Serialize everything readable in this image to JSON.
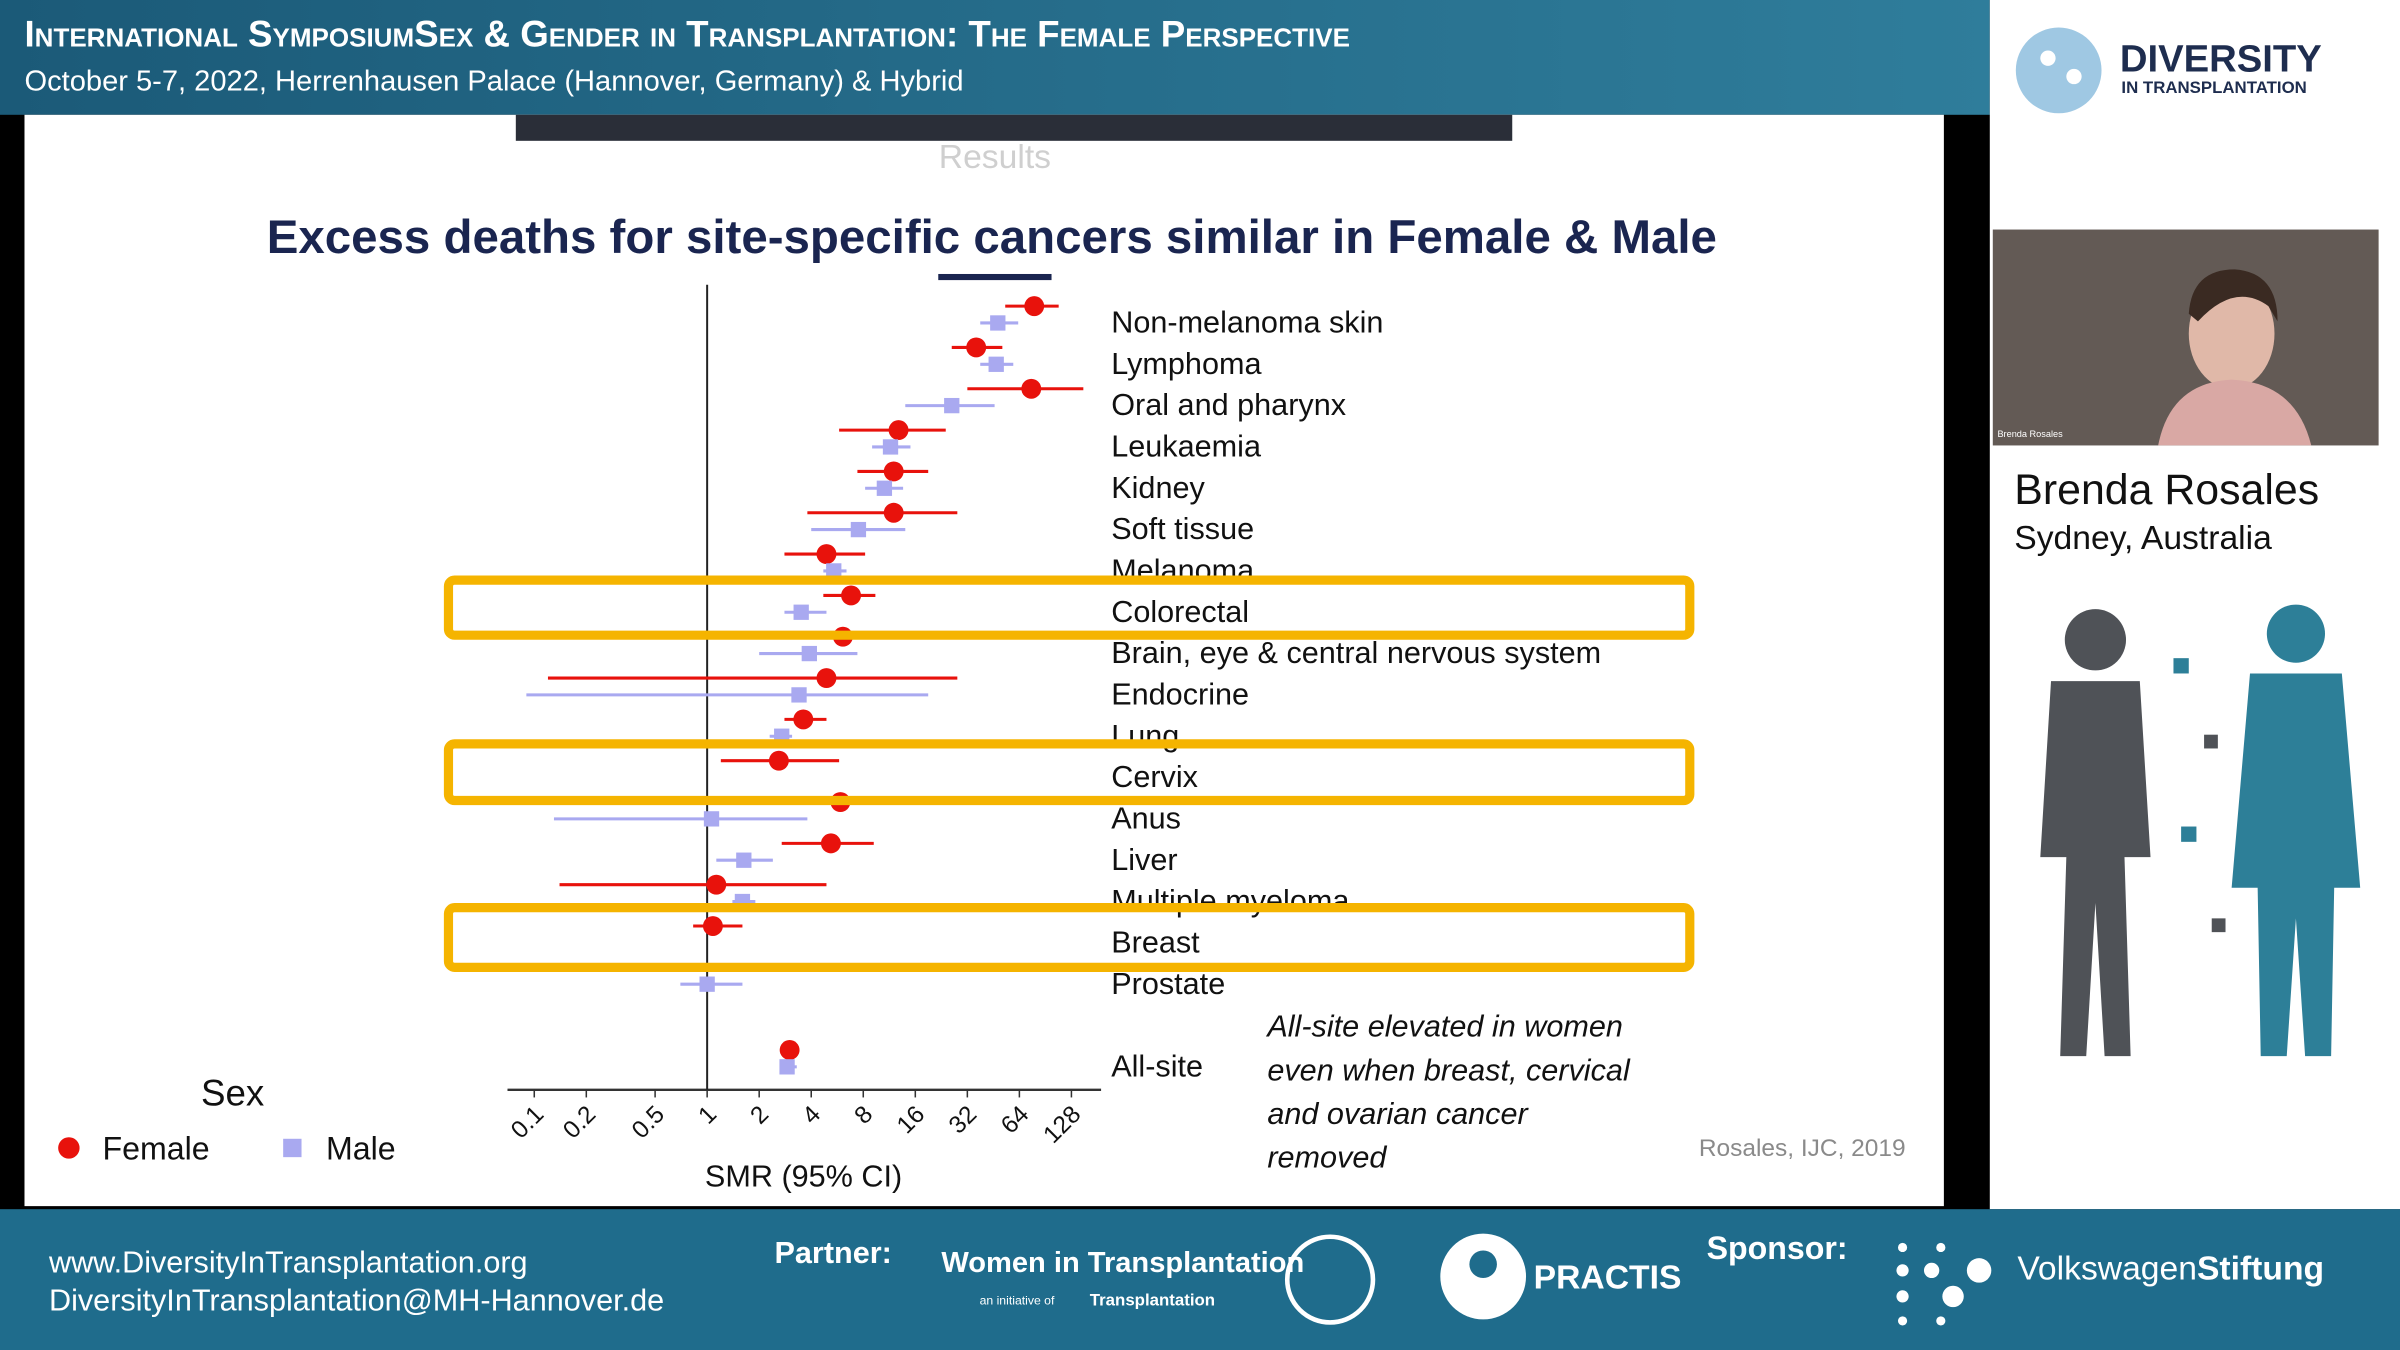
{
  "header": {
    "title": "International SymposiumSex & Gender in Transplantation: The Female Perspective",
    "subtitle": "October 5-7, 2022, Herrenhausen Palace (Hannover, Germany) & Hybrid"
  },
  "logo": {
    "name": "DIVERSITY",
    "tagline": "IN TRANSPLANTATION"
  },
  "slide": {
    "section": "Results",
    "note_lines": [
      "All-site elevated in women",
      "even when breast, cervical",
      "and ovarian cancer",
      "removed"
    ],
    "source": "Rosales, IJC, 2019"
  },
  "chart_data": {
    "type": "forest",
    "title": "Excess deaths for site-specific cancers similar in Female & Male",
    "x_label": "SMR (95% CI)",
    "legend_title": "Sex",
    "log_x": true,
    "categories": [
      "Non-melanoma skin",
      "Lymphoma",
      "Oral and pharynx",
      "Leukaemia",
      "Kidney",
      "Soft tissue",
      "Melanoma",
      "Colorectal",
      "Brain, eye & central nervous system",
      "Endocrine",
      "Lung",
      "Cervix",
      "Anus",
      "Liver",
      "Multiple myeloma",
      "Breast",
      "Prostate",
      "All-site"
    ],
    "series": [
      {
        "name": "Female",
        "color": "#e8120c",
        "values": [
          78,
          36,
          75,
          12.8,
          12,
          12,
          4.9,
          6.8,
          6.1,
          4.9,
          3.6,
          2.6,
          5.9,
          5.2,
          1.13,
          1.08,
          null,
          3.0
        ],
        "lower": [
          53,
          26,
          32,
          5.8,
          7.4,
          3.8,
          2.8,
          4.7,
          5.4,
          0.12,
          2.8,
          1.2,
          5.2,
          2.7,
          0.14,
          0.83,
          null,
          2.7
        ],
        "upper": [
          108,
          51,
          150,
          24,
          19,
          28,
          8.2,
          9.4,
          7.1,
          28,
          4.9,
          5.8,
          6.6,
          9.2,
          4.9,
          1.6,
          null,
          3.4
        ]
      },
      {
        "name": "Male",
        "color": "#a9a9f0",
        "values": [
          48,
          47,
          26,
          11.5,
          10.6,
          7.5,
          5.4,
          3.5,
          3.9,
          3.4,
          2.7,
          null,
          1.06,
          1.63,
          1.6,
          null,
          1.0,
          2.9
        ],
        "lower": [
          38,
          38,
          14,
          9,
          8.2,
          4,
          4.7,
          2.8,
          2,
          0.09,
          2.3,
          null,
          0.13,
          1.13,
          1.4,
          null,
          0.7,
          2.7
        ],
        "upper": [
          63,
          59,
          46,
          15,
          13.6,
          14,
          6.4,
          4.9,
          7.4,
          19,
          3.1,
          null,
          3.8,
          2.4,
          1.9,
          null,
          1.6,
          3.3
        ]
      }
    ],
    "xlim": [
      0.07,
      190
    ],
    "xticks": [
      0.1,
      0.2,
      0.5,
      1,
      2,
      4,
      8,
      16,
      32,
      64,
      128
    ]
  },
  "speaker": {
    "video_label": "Brenda Rosales",
    "name": "Brenda Rosales",
    "location": "Sydney, Australia"
  },
  "footer": {
    "website": "www.DiversityInTransplantation.org",
    "email": "DiversityInTransplantation@MH-Hannover.de",
    "partner_label": "Partner:",
    "partner_1": "Women in Transplantation",
    "partner_1_sub": "an initiative of",
    "partner_1_org": "Transplantation",
    "partner_3": "PRACTIS",
    "sponsor_label": "Sponsor:",
    "sponsor_name_1": "Volkswagen",
    "sponsor_name_2": "Stiftung"
  }
}
